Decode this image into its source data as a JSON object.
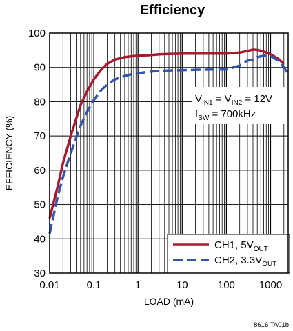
{
  "chart_data": {
    "type": "line",
    "title": "Efficiency",
    "xlabel": "LOAD (mA)",
    "ylabel": "EFFICIENCY (%)",
    "x_scale": "log",
    "xlim": [
      0.01,
      2500
    ],
    "ylim": [
      30,
      100
    ],
    "x_ticks": [
      "0.01",
      "0.1",
      "1",
      "10",
      "100",
      "1000"
    ],
    "y_ticks": [
      "30",
      "40",
      "50",
      "60",
      "70",
      "80",
      "90",
      "100"
    ],
    "grid": true,
    "legend_position": "bottom-right",
    "annotation": {
      "line1": {
        "v1": "V",
        "v1_sub": "IN1",
        "eq": " = V",
        "v2_sub": "IN2",
        "rest": " = 12V"
      },
      "line2": {
        "f": "f",
        "f_sub": "SW",
        "rest": " = 700kHz"
      }
    },
    "footnote": "8616 TA01b",
    "colors": {
      "ch1": "#a6192e",
      "ch2": "#3355aa",
      "grid": "#000000"
    },
    "series": [
      {
        "name": "CH1, 5V",
        "name_sub": "OUT",
        "style": "solid",
        "x": [
          0.01,
          0.015,
          0.02,
          0.03,
          0.05,
          0.07,
          0.1,
          0.15,
          0.2,
          0.3,
          0.5,
          0.7,
          1,
          2,
          3,
          5,
          10,
          20,
          50,
          100,
          200,
          300,
          400,
          500,
          700,
          1000,
          1500,
          2000
        ],
        "y": [
          46,
          55,
          62,
          70,
          79,
          83,
          86.5,
          89.5,
          91,
          92.3,
          93,
          93.2,
          93.4,
          93.6,
          93.8,
          93.9,
          94,
          94,
          94,
          94,
          94.3,
          94.8,
          95.2,
          95.1,
          94.6,
          93.8,
          92.5,
          91
        ]
      },
      {
        "name": "CH2, 3.3V",
        "name_sub": "OUT",
        "style": "dashed",
        "x": [
          0.01,
          0.015,
          0.02,
          0.03,
          0.05,
          0.07,
          0.1,
          0.15,
          0.2,
          0.3,
          0.5,
          0.7,
          1,
          2,
          3,
          5,
          10,
          20,
          50,
          100,
          200,
          300,
          400,
          500,
          700,
          1000,
          1500,
          2000,
          2500
        ],
        "y": [
          41.5,
          52,
          58,
          65,
          73,
          77,
          80.5,
          83.5,
          85,
          86.5,
          87.5,
          88,
          88.3,
          88.8,
          89,
          89.1,
          89.2,
          89.3,
          89.4,
          89.4,
          90.5,
          92,
          92.2,
          93,
          93.4,
          93.3,
          92,
          90,
          88
        ]
      }
    ]
  }
}
